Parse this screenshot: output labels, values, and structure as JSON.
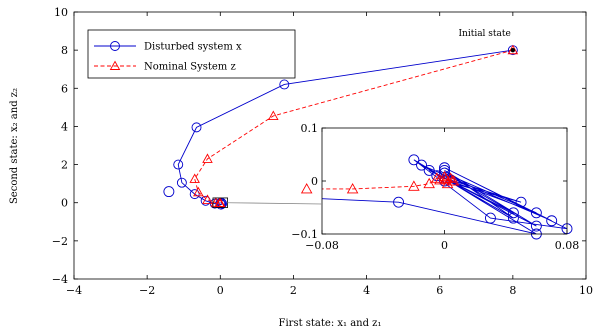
{
  "chart_data": {
    "type": "line",
    "xlabel": "First state: x₁ and z₁",
    "ylabel": "Second state: x₂ and z₂",
    "xlim": [
      -4,
      10
    ],
    "ylim": [
      -4,
      10
    ],
    "xticks": [
      "−4",
      "−2",
      "0",
      "2",
      "4",
      "6",
      "8",
      "10"
    ],
    "yticks": [
      "−4",
      "−2",
      "0",
      "2",
      "4",
      "6",
      "8",
      "10"
    ],
    "grid": false,
    "legend_position": "top-left",
    "series": [
      {
        "name": "Disturbed system x",
        "color": "#0000cc",
        "line_style": "solid",
        "marker": "circle",
        "x": [
          8.0,
          1.75,
          -0.65,
          -1.15,
          -1.05,
          -0.7,
          -0.4,
          -0.15,
          0.02,
          0.05,
          0.03,
          0.0
        ],
        "y": [
          8.0,
          6.2,
          3.95,
          2.0,
          1.05,
          0.45,
          0.1,
          -0.05,
          -0.1,
          -0.05,
          0.0,
          -0.02
        ]
      },
      {
        "name": "Nominal System z",
        "color": "#ff0000",
        "line_style": "dashed",
        "marker": "triangle",
        "x": [
          8.0,
          1.45,
          -0.35,
          -0.7,
          -0.6,
          -0.35,
          -0.12,
          -0.02,
          0.0
        ],
        "y": [
          8.0,
          4.55,
          2.3,
          1.25,
          0.55,
          0.15,
          0.0,
          -0.02,
          -0.01
        ]
      }
    ],
    "annotations": [
      {
        "text": "Initial state",
        "x": 8.0,
        "y": 8.0
      }
    ],
    "inset": {
      "xlim": [
        -0.08,
        0.08
      ],
      "ylim": [
        -0.1,
        0.1
      ],
      "xticks": [
        "−0.08",
        "0",
        "0.08"
      ],
      "yticks": [
        "−0.1",
        "0",
        "0.1"
      ],
      "zoom_box": {
        "x": [
          -0.2,
          0.2
        ],
        "y": [
          -0.25,
          0.25
        ]
      },
      "series": [
        {
          "name": "Disturbed system x",
          "x": [
            -0.18,
            -0.03,
            0.06,
            -0.02,
            0.03,
            0.08,
            0.0,
            0.07,
            -0.015,
            0.045,
            0.0,
            0.06,
            -0.01,
            0.045,
            0.0,
            0.06,
            -0.005,
            0.05,
            0.0
          ],
          "y": [
            -0.02,
            -0.04,
            -0.1,
            0.04,
            -0.07,
            -0.09,
            0.025,
            -0.075,
            0.03,
            -0.07,
            0.02,
            -0.085,
            0.02,
            -0.06,
            0.015,
            -0.06,
            0.01,
            -0.04,
            0.0
          ]
        },
        {
          "name": "Nominal System z",
          "x": [
            -0.09,
            -0.06,
            -0.02,
            -0.01,
            -0.005,
            0.0,
            0.004,
            0.006,
            0.002,
            -0.003,
            0.001,
            0.005
          ],
          "y": [
            -0.015,
            -0.015,
            -0.01,
            -0.005,
            0.005,
            0.008,
            0.005,
            0.0,
            -0.005,
            0.002,
            0.004,
            0.0
          ]
        }
      ]
    }
  }
}
